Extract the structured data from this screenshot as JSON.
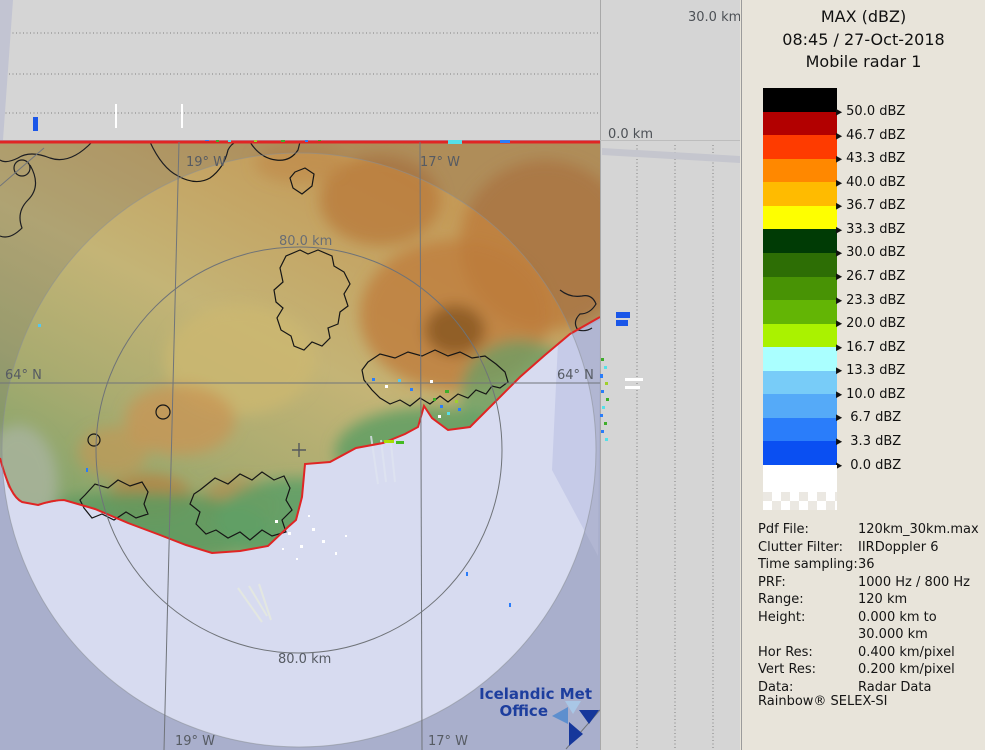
{
  "legend": {
    "title": "MAX (dBZ)",
    "timestamp": "08:45 / 27-Oct-2018",
    "radar_name": "Mobile radar 1",
    "tick_marker": "▶",
    "colorbar": [
      {
        "value": "50.0 dBZ",
        "color": "#000000"
      },
      {
        "value": "46.7 dBZ",
        "color": "#b20000"
      },
      {
        "value": "43.3 dBZ",
        "color": "#fe3b00"
      },
      {
        "value": "40.0 dBZ",
        "color": "#ff8800"
      },
      {
        "value": "36.7 dBZ",
        "color": "#ffbb00"
      },
      {
        "value": "33.3 dBZ",
        "color": "#feff00"
      },
      {
        "value": "30.0 dBZ",
        "color": "#003b05"
      },
      {
        "value": "26.7 dBZ",
        "color": "#2d6e05"
      },
      {
        "value": "23.3 dBZ",
        "color": "#489305"
      },
      {
        "value": "20.0 dBZ",
        "color": "#63b505"
      },
      {
        "value": "16.7 dBZ",
        "color": "#aaf200"
      },
      {
        "value": "13.3 dBZ",
        "color": "#aaffff"
      },
      {
        "value": "10.0 dBZ",
        "color": "#78ccf8"
      },
      {
        "value": " 6.7 dBZ",
        "color": "#55aaf8"
      },
      {
        "value": " 3.3 dBZ",
        "color": "#2a7dfa"
      },
      {
        "value": " 0.0 dBZ",
        "color": "#0a4ff2"
      }
    ],
    "metadata": [
      {
        "label": "Pdf File:",
        "value": "120km_30km.max"
      },
      {
        "label": "Clutter Filter:",
        "value": "IIRDoppler 6"
      },
      {
        "label": "Time sampling:",
        "value": "36"
      },
      {
        "label": "PRF:",
        "value": "1000 Hz / 800 Hz"
      },
      {
        "label": "Range:",
        "value": "120 km"
      },
      {
        "label": "Height:",
        "value": "0.000 km to"
      },
      {
        "label": "",
        "value": "30.000 km"
      },
      {
        "label": "Hor Res:",
        "value": "0.400 km/pixel"
      },
      {
        "label": "Vert Res:",
        "value": "0.200 km/pixel"
      },
      {
        "label": "Data:",
        "value": "Radar Data"
      }
    ],
    "brand": "Rainbow® SELEX-SI"
  },
  "profile": {
    "top_height": "30.0 km",
    "bottom_height": "0.0 km"
  },
  "map": {
    "ring_label_top": "80.0 km",
    "ring_label_bottom": "80.0 km",
    "lat_label_left": "64° N",
    "lat_label_right": "64° N",
    "lon19_top": "19° W",
    "lon19_bottom": "19° W",
    "lon17_top": "17° W",
    "lon17_bottom": "17° W",
    "logo_line1": "Icelandic Met",
    "logo_line2": "Office"
  },
  "colors": {
    "boundary_red": "#e02524",
    "sea_inside": "#d7dbf0",
    "sea_outside": "#bdc3e0",
    "panel_gray": "#d5d5d5",
    "legend_bg": "#e8e4da",
    "logo_blue": "#1d3e9e"
  }
}
